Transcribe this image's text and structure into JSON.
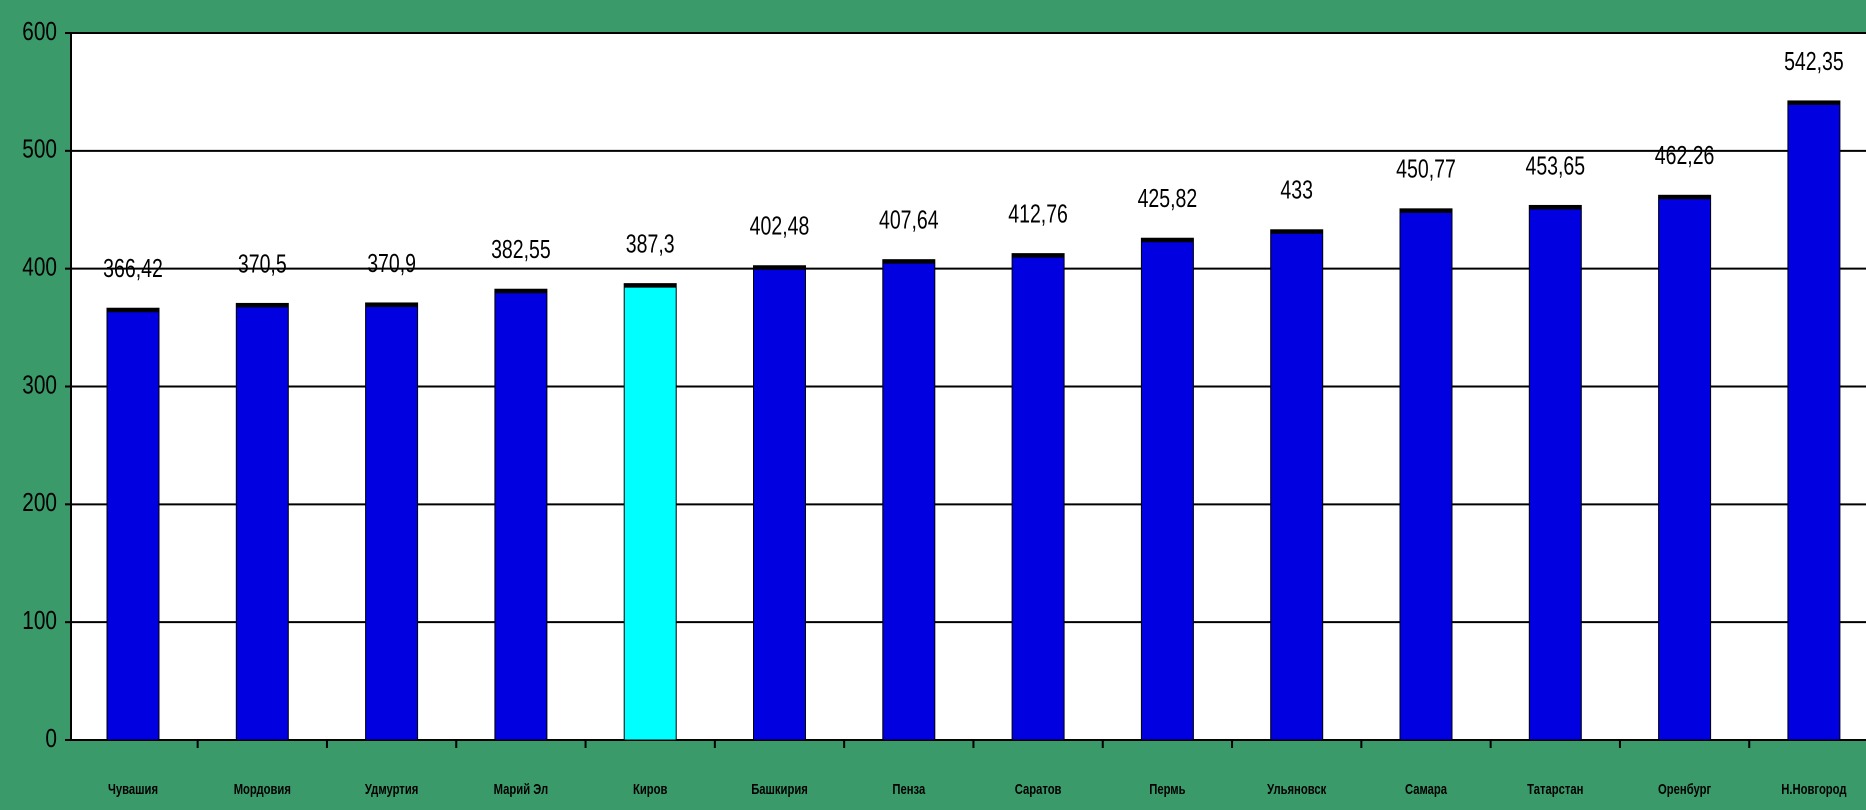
{
  "chart_data": {
    "type": "bar",
    "categories": [
      "Чувашия",
      "Мордовия",
      "Удмуртия",
      "Марий Эл",
      "Киров",
      "Башкирия",
      "Пенза",
      "Саратов",
      "Пермь",
      "Ульяновск",
      "Самара",
      "Татарстан",
      "Оренбург",
      "Н.Новгород"
    ],
    "values": [
      366.42,
      370.5,
      370.9,
      382.55,
      387.3,
      402.48,
      407.64,
      412.76,
      425.82,
      433,
      450.77,
      453.65,
      462.26,
      542.35
    ],
    "value_labels": [
      "366,42",
      "370,5",
      "370,9",
      "382,55",
      "387,3",
      "402,48",
      "407,64",
      "412,76",
      "425,82",
      "433",
      "450,77",
      "453,65",
      "462,26",
      "542,35"
    ],
    "colors": [
      "#0000e0",
      "#0000e0",
      "#0000e0",
      "#0000e0",
      "#00ffff",
      "#0000e0",
      "#0000e0",
      "#0000e0",
      "#0000e0",
      "#0000e0",
      "#0000e0",
      "#0000e0",
      "#0000e0",
      "#0000e0"
    ],
    "ylim": [
      0,
      600
    ],
    "yticks": [
      0,
      100,
      200,
      300,
      400,
      500,
      600
    ],
    "grid": true
  }
}
